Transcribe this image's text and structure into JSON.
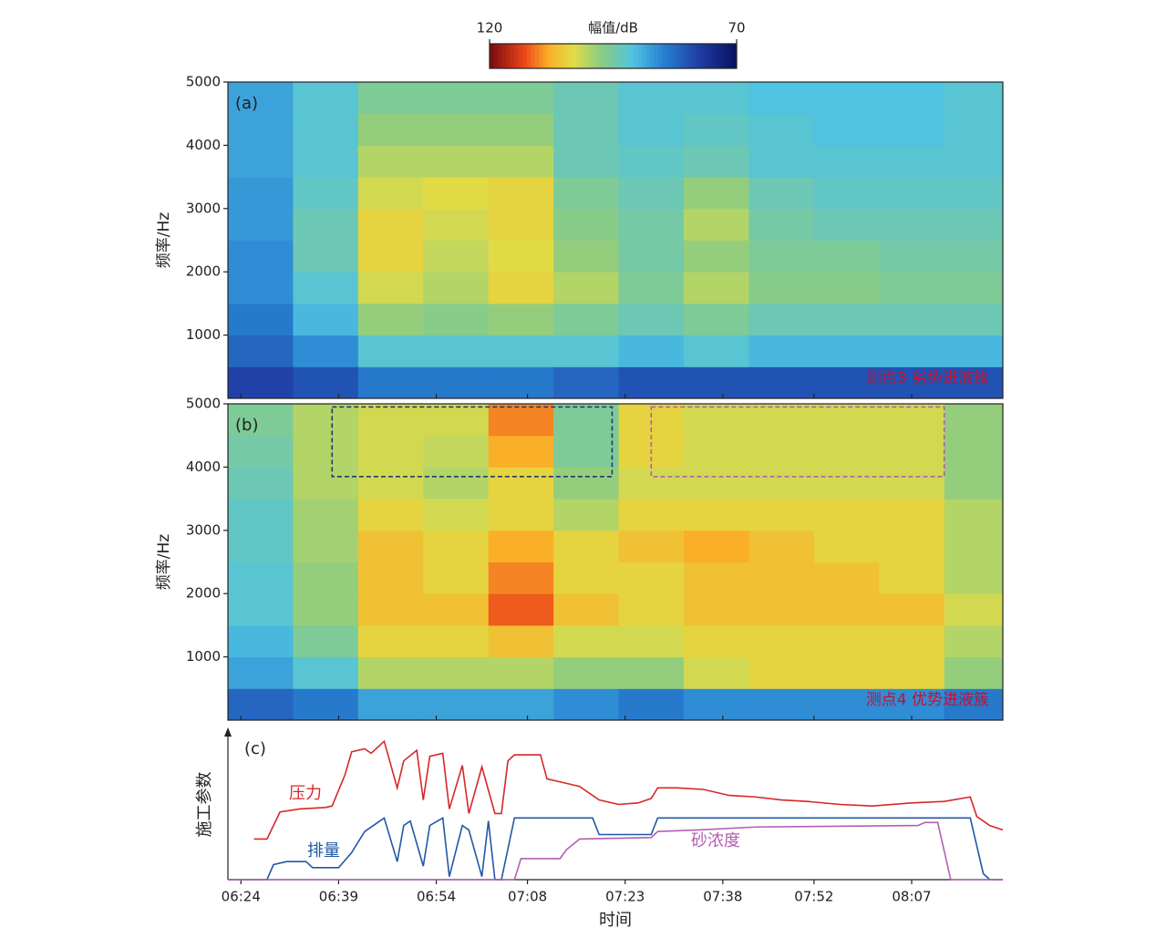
{
  "chart_data": [
    {
      "type": "heatmap",
      "label": "(a)",
      "annotation": "测点3 劣势进液簇",
      "ylabel": "频率/Hz",
      "ylim": [
        0,
        5000
      ],
      "yticks": [
        1000,
        2000,
        3000,
        4000,
        5000
      ],
      "colormap": "jet",
      "clim": [
        70,
        120
      ],
      "colorbar_label": "幅值/dB",
      "cticks": [
        120,
        70
      ],
      "time_bins": [
        382,
        392,
        402,
        412,
        422,
        432,
        442,
        452,
        462,
        472,
        482,
        492,
        501
      ],
      "freq_bins": [
        0,
        500,
        1000,
        1500,
        2000,
        2500,
        3000,
        3500,
        4000,
        4500,
        5000
      ],
      "values": [
        [
          78,
          82,
          84,
          86,
          86,
          87,
          87,
          88,
          88,
          88
        ],
        [
          80,
          86,
          90,
          92,
          94,
          94,
          93,
          92,
          92,
          92
        ],
        [
          84,
          92,
          98,
          102,
          104,
          104,
          102,
          100,
          98,
          96
        ],
        [
          84,
          92,
          97,
          100,
          101,
          102,
          103,
          100,
          98,
          96
        ],
        [
          84,
          92,
          98,
          104,
          103,
          104,
          104,
          100,
          98,
          96
        ],
        [
          82,
          92,
          96,
          100,
          98,
          97,
          96,
          94,
          94,
          94
        ],
        [
          80,
          90,
          94,
          96,
          95,
          95,
          94,
          93,
          92,
          92
        ],
        [
          80,
          92,
          96,
          100,
          98,
          100,
          98,
          94,
          93,
          92
        ],
        [
          80,
          90,
          94,
          97,
          96,
          95,
          94,
          92,
          92,
          91
        ],
        [
          80,
          90,
          94,
          97,
          96,
          94,
          93,
          92,
          91,
          91
        ],
        [
          80,
          90,
          94,
          96,
          95,
          94,
          93,
          92,
          91,
          91
        ],
        [
          80,
          90,
          94,
          96,
          95,
          94,
          93,
          92,
          92,
          92
        ]
      ]
    },
    {
      "type": "heatmap",
      "label": "(b)",
      "annotation": "测点4 优势进液簇",
      "ylabel": "频率/Hz",
      "ylim": [
        0,
        5000
      ],
      "yticks": [
        1000,
        2000,
        3000,
        4000,
        5000
      ],
      "colormap": "jet",
      "clim": [
        70,
        120
      ],
      "time_bins": [
        382,
        392,
        402,
        412,
        422,
        432,
        442,
        452,
        462,
        472,
        482,
        492,
        501
      ],
      "freq_bins": [
        0,
        500,
        1000,
        1500,
        2000,
        2500,
        3000,
        3500,
        4000,
        4500,
        5000
      ],
      "values": [
        [
          82,
          88,
          90,
          92,
          92,
          93,
          93,
          94,
          95,
          96
        ],
        [
          84,
          92,
          96,
          98,
          98,
          99,
          99,
          100,
          100,
          100
        ],
        [
          88,
          100,
          104,
          106,
          106,
          106,
          104,
          102,
          102,
          102
        ],
        [
          88,
          100,
          104,
          106,
          104,
          104,
          102,
          100,
          101,
          102
        ],
        [
          88,
          100,
          106,
          112,
          110,
          108,
          104,
          104,
          108,
          110
        ],
        [
          86,
          98,
          102,
          106,
          104,
          104,
          100,
          98,
          96,
          96
        ],
        [
          84,
          98,
          102,
          104,
          104,
          106,
          104,
          102,
          104,
          104
        ],
        [
          86,
          102,
          104,
          106,
          106,
          108,
          104,
          102,
          102,
          102
        ],
        [
          86,
          104,
          104,
          106,
          106,
          106,
          104,
          102,
          102,
          102
        ],
        [
          86,
          104,
          104,
          106,
          106,
          104,
          104,
          102,
          102,
          102
        ],
        [
          86,
          104,
          104,
          106,
          104,
          104,
          104,
          102,
          102,
          102
        ],
        [
          84,
          98,
          100,
          102,
          100,
          100,
          100,
          98,
          98,
          98
        ]
      ],
      "regions": [
        {
          "x": [
            398,
            441
          ],
          "y": [
            3850,
            4950
          ],
          "color": "#1f3b73"
        },
        {
          "x": [
            447,
            492
          ],
          "y": [
            3850,
            4950
          ],
          "color": "#b25fb0"
        }
      ]
    },
    {
      "type": "line",
      "label": "(c)",
      "ylabel": "施工参数",
      "xlabel": "时间",
      "xlim": [
        382,
        501
      ],
      "ylim": [
        0,
        100
      ],
      "xticks": [
        {
          "value": 384,
          "label": "06:24"
        },
        {
          "value": 399,
          "label": "06:39"
        },
        {
          "value": 414,
          "label": "06:54"
        },
        {
          "value": 428,
          "label": "07:08"
        },
        {
          "value": 443,
          "label": "07:23"
        },
        {
          "value": 458,
          "label": "07:38"
        },
        {
          "value": 472,
          "label": "07:52"
        },
        {
          "value": 487,
          "label": "08:07"
        }
      ],
      "series": [
        {
          "name": "压力",
          "color": "#d62728",
          "x": [
            386,
            388,
            390,
            393,
            397,
            398,
            400,
            401,
            403,
            404,
            406,
            408,
            409,
            411,
            412,
            413,
            415,
            416,
            418,
            419,
            421,
            423,
            424,
            425,
            426,
            430,
            431,
            434,
            436,
            439,
            442,
            445,
            447,
            448,
            451,
            455,
            459,
            463,
            467,
            471,
            476,
            481,
            487,
            492,
            496,
            497,
            499,
            501
          ],
          "values": [
            27,
            27,
            45,
            47,
            48,
            49,
            70,
            85,
            87,
            84,
            92,
            61,
            79,
            86,
            53,
            82,
            84,
            47,
            76,
            44,
            75,
            44,
            44,
            79,
            83,
            83,
            67,
            64,
            62,
            53,
            50,
            51,
            54,
            61,
            61,
            60,
            56,
            55,
            53,
            52,
            50,
            49,
            51,
            52,
            55,
            42,
            36,
            33
          ]
        },
        {
          "name": "排量",
          "color": "#2257a5",
          "x": [
            382,
            388,
            389,
            391,
            394,
            395,
            399,
            401,
            403,
            405,
            406,
            408,
            409,
            410,
            412,
            413,
            415,
            416,
            418,
            419,
            421,
            422,
            423,
            424,
            426,
            438,
            439,
            447,
            448,
            496,
            498,
            499,
            501
          ],
          "values": [
            0,
            0,
            10,
            12,
            12,
            8,
            8,
            18,
            32,
            38,
            41,
            12,
            36,
            39,
            9,
            36,
            41,
            2,
            36,
            33,
            2,
            39,
            0,
            0,
            41,
            41,
            30,
            30,
            41,
            41,
            4,
            0,
            0
          ]
        },
        {
          "name": "砂浓度",
          "color": "#b25fb0",
          "x": [
            382,
            426,
            427,
            433,
            434,
            436,
            447,
            448,
            454,
            463,
            488,
            489,
            491,
            493,
            501
          ],
          "values": [
            0,
            0,
            14,
            14,
            20,
            27,
            28,
            32,
            33,
            35,
            36,
            38,
            38,
            0,
            0
          ]
        }
      ]
    }
  ]
}
